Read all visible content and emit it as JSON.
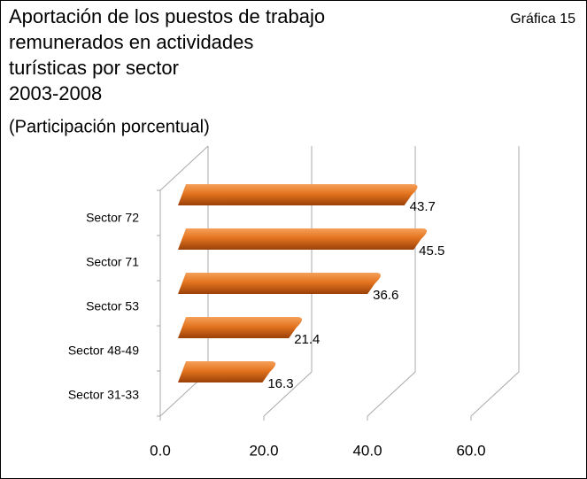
{
  "chart_data": {
    "type": "bar",
    "orientation": "horizontal",
    "title": [
      "Aportación de los puestos de trabajo",
      "remunerados en actividades",
      "turísticas por sector",
      "2003-2008"
    ],
    "subtitle": "(Participación porcentual)",
    "annotation": "Gráfica 15",
    "categories": [
      "Sector 72",
      "Sector 71",
      "Sector 53",
      "Sector 48-49",
      "Sector 31-33"
    ],
    "values": [
      43.7,
      45.5,
      36.6,
      21.4,
      16.3
    ],
    "color": "#e3741f",
    "xlim": [
      0,
      60
    ],
    "xticks": [
      {
        "value": 0,
        "label": "0.0"
      },
      {
        "value": 20,
        "label": "20.0"
      },
      {
        "value": 40,
        "label": "40.0"
      },
      {
        "value": 60,
        "label": "60.0"
      }
    ],
    "grid": true
  }
}
